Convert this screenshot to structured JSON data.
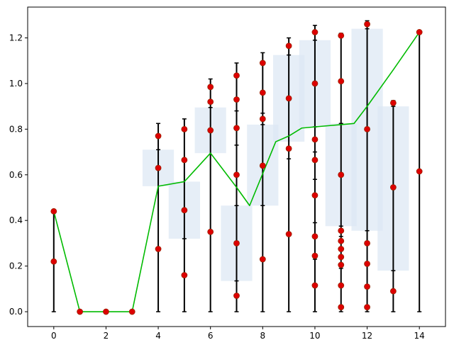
{
  "chart_data": {
    "type": "line",
    "title": "",
    "xlabel": "",
    "ylabel": "",
    "xlim": [
      -1,
      15
    ],
    "ylim": [
      -0.065,
      1.335
    ],
    "x_ticks": [
      0,
      2,
      4,
      6,
      8,
      10,
      12,
      14
    ],
    "y_ticks": [
      0.0,
      0.2,
      0.4,
      0.6,
      0.8,
      1.0,
      1.2
    ],
    "y_tick_labels": [
      "0.0",
      "0.2",
      "0.4",
      "0.6",
      "0.8",
      "1.0",
      "1.2"
    ],
    "grid": false,
    "legend": "none",
    "line_series": {
      "color": "#00bb00",
      "x": [
        0,
        1,
        2,
        3,
        4,
        5,
        6,
        7,
        7.5,
        8,
        8.5,
        9,
        9.5,
        10,
        10.5,
        11,
        11.5,
        12,
        13,
        14
      ],
      "y": [
        0.44,
        0.0,
        0.0,
        0.0,
        0.55,
        0.57,
        0.695,
        0.545,
        0.465,
        0.605,
        0.745,
        0.77,
        0.805,
        0.81,
        0.815,
        0.82,
        0.825,
        0.9,
        1.06,
        1.225
      ]
    },
    "boxes": {
      "color": "#dce8f4",
      "items": [
        {
          "x": 4,
          "low": 0.55,
          "high": 0.71
        },
        {
          "x": 5,
          "low": 0.32,
          "high": 0.57
        },
        {
          "x": 6,
          "low": 0.695,
          "high": 0.895
        },
        {
          "x": 7,
          "low": 0.135,
          "high": 0.465
        },
        {
          "x": 8,
          "low": 0.465,
          "high": 0.82
        },
        {
          "x": 9,
          "low": 0.745,
          "high": 1.125
        },
        {
          "x": 10,
          "low": 0.81,
          "high": 1.19
        },
        {
          "x": 11,
          "low": 0.375,
          "high": 0.825
        },
        {
          "x": 12,
          "low": 0.355,
          "high": 1.24
        },
        {
          "x": 13,
          "low": 0.18,
          "high": 0.9
        }
      ]
    },
    "error_bars": {
      "color": "#000000",
      "items": [
        {
          "x": 0,
          "low": 0.0,
          "high": 0.44,
          "caps": [
            0.0,
            0.44
          ]
        },
        {
          "x": 4,
          "low": 0.0,
          "high": 0.825,
          "caps": [
            0.0,
            0.71,
            0.825
          ]
        },
        {
          "x": 5,
          "low": 0.0,
          "high": 0.845,
          "caps": [
            0.0,
            0.32,
            0.805,
            0.845
          ]
        },
        {
          "x": 6,
          "low": 0.0,
          "high": 1.02,
          "caps": [
            0.0,
            0.895,
            0.985,
            1.02
          ]
        },
        {
          "x": 7,
          "low": 0.0,
          "high": 1.09,
          "caps": [
            0.0,
            0.135,
            0.465,
            0.73,
            0.88,
            1.09
          ]
        },
        {
          "x": 8,
          "low": 0.0,
          "high": 1.135,
          "caps": [
            0.0,
            0.465,
            0.82,
            0.87,
            1.135
          ]
        },
        {
          "x": 9,
          "low": 0.0,
          "high": 1.2,
          "caps": [
            0.0,
            0.67,
            1.125,
            1.2
          ]
        },
        {
          "x": 10,
          "low": 0.0,
          "high": 1.255,
          "caps": [
            0.0,
            0.23,
            0.39,
            0.58,
            0.7,
            0.81,
            1.19,
            1.255
          ]
        },
        {
          "x": 11,
          "low": 0.0,
          "high": 1.22,
          "caps": [
            0.0,
            0.02,
            0.19,
            0.33,
            0.375,
            0.825,
            1.22
          ]
        },
        {
          "x": 12,
          "low": 0.0,
          "high": 1.275,
          "caps": [
            0.0,
            0.02,
            0.355,
            1.24,
            1.275
          ]
        },
        {
          "x": 13,
          "low": 0.0,
          "high": 0.925,
          "caps": [
            0.0,
            0.18,
            0.9,
            0.925
          ]
        },
        {
          "x": 14,
          "low": 0.0,
          "high": 1.225,
          "caps": [
            0.0
          ]
        }
      ]
    },
    "points": {
      "color": "#dd0000",
      "edge_color": "#992200",
      "items": [
        {
          "x": 0,
          "y": 0.44
        },
        {
          "x": 0,
          "y": 0.22
        },
        {
          "x": 1,
          "y": 0.0
        },
        {
          "x": 2,
          "y": 0.0
        },
        {
          "x": 3,
          "y": 0.0
        },
        {
          "x": 4,
          "y": 0.77
        },
        {
          "x": 4,
          "y": 0.63
        },
        {
          "x": 4,
          "y": 0.275
        },
        {
          "x": 5,
          "y": 0.8
        },
        {
          "x": 5,
          "y": 0.665
        },
        {
          "x": 5,
          "y": 0.445
        },
        {
          "x": 5,
          "y": 0.16
        },
        {
          "x": 6,
          "y": 0.985
        },
        {
          "x": 6,
          "y": 0.92
        },
        {
          "x": 6,
          "y": 0.795
        },
        {
          "x": 6,
          "y": 0.35
        },
        {
          "x": 7,
          "y": 1.035
        },
        {
          "x": 7,
          "y": 0.93
        },
        {
          "x": 7,
          "y": 0.805
        },
        {
          "x": 7,
          "y": 0.6
        },
        {
          "x": 7,
          "y": 0.3
        },
        {
          "x": 7,
          "y": 0.07
        },
        {
          "x": 8,
          "y": 1.09
        },
        {
          "x": 8,
          "y": 0.96
        },
        {
          "x": 8,
          "y": 0.845
        },
        {
          "x": 8,
          "y": 0.64
        },
        {
          "x": 8,
          "y": 0.23
        },
        {
          "x": 9,
          "y": 1.165
        },
        {
          "x": 9,
          "y": 0.935
        },
        {
          "x": 9,
          "y": 0.715
        },
        {
          "x": 9,
          "y": 0.34
        },
        {
          "x": 10,
          "y": 1.225
        },
        {
          "x": 10,
          "y": 1.0
        },
        {
          "x": 10,
          "y": 0.755
        },
        {
          "x": 10,
          "y": 0.665
        },
        {
          "x": 10,
          "y": 0.51
        },
        {
          "x": 10,
          "y": 0.33
        },
        {
          "x": 10,
          "y": 0.245
        },
        {
          "x": 10,
          "y": 0.115
        },
        {
          "x": 11,
          "y": 1.21
        },
        {
          "x": 11,
          "y": 1.01
        },
        {
          "x": 11,
          "y": 0.6
        },
        {
          "x": 11,
          "y": 0.355
        },
        {
          "x": 11,
          "y": 0.31
        },
        {
          "x": 11,
          "y": 0.275
        },
        {
          "x": 11,
          "y": 0.24
        },
        {
          "x": 11,
          "y": 0.205
        },
        {
          "x": 11,
          "y": 0.115
        },
        {
          "x": 11,
          "y": 0.02
        },
        {
          "x": 12,
          "y": 1.26
        },
        {
          "x": 12,
          "y": 0.8
        },
        {
          "x": 12,
          "y": 0.3
        },
        {
          "x": 12,
          "y": 0.21
        },
        {
          "x": 12,
          "y": 0.11
        },
        {
          "x": 12,
          "y": 0.02
        },
        {
          "x": 13,
          "y": 0.915
        },
        {
          "x": 13,
          "y": 0.545
        },
        {
          "x": 13,
          "y": 0.09
        },
        {
          "x": 14,
          "y": 1.225
        },
        {
          "x": 14,
          "y": 0.615
        }
      ]
    }
  }
}
